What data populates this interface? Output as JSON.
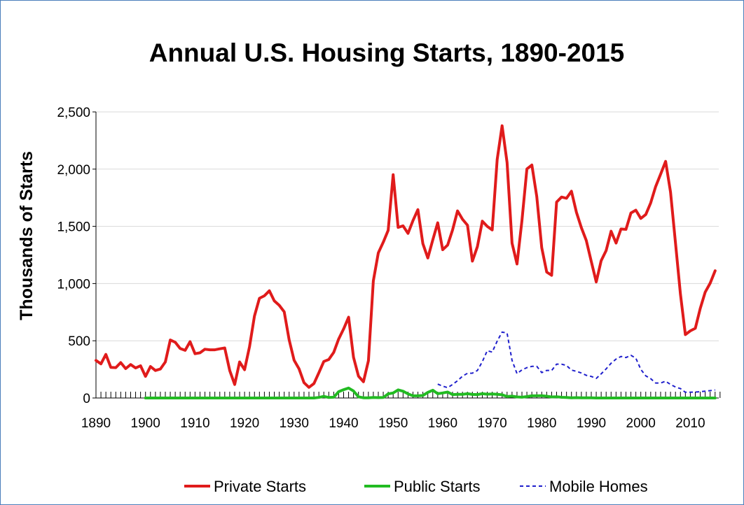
{
  "chart_data": {
    "type": "line",
    "title": "Annual U.S. Housing Starts, 1890-2015",
    "ylabel": "Thousands of Starts",
    "xlabel": "",
    "xlim": [
      1890,
      2016
    ],
    "ylim": [
      0,
      2500
    ],
    "x_ticks": [
      1890,
      1900,
      1910,
      1920,
      1930,
      1940,
      1950,
      1960,
      1970,
      1980,
      1990,
      2000,
      2010
    ],
    "y_ticks": [
      0,
      500,
      1000,
      1500,
      2000,
      2500
    ],
    "y_tick_labels": [
      "0",
      "500",
      "1,000",
      "1,500",
      "2,000",
      "2,500"
    ],
    "grid": "horizontal",
    "legend_position": "bottom",
    "series": [
      {
        "name": "Private Starts",
        "color": "#e01b1b",
        "style": "solid",
        "x": [
          1890,
          1891,
          1892,
          1893,
          1894,
          1895,
          1896,
          1897,
          1898,
          1899,
          1900,
          1901,
          1902,
          1903,
          1904,
          1905,
          1906,
          1907,
          1908,
          1909,
          1910,
          1911,
          1912,
          1913,
          1914,
          1915,
          1916,
          1917,
          1918,
          1919,
          1920,
          1921,
          1922,
          1923,
          1924,
          1925,
          1926,
          1927,
          1928,
          1929,
          1930,
          1931,
          1932,
          1933,
          1934,
          1935,
          1936,
          1937,
          1938,
          1939,
          1940,
          1941,
          1942,
          1943,
          1944,
          1945,
          1946,
          1947,
          1948,
          1949,
          1950,
          1951,
          1952,
          1953,
          1954,
          1955,
          1956,
          1957,
          1958,
          1959,
          1960,
          1961,
          1962,
          1963,
          1964,
          1965,
          1966,
          1967,
          1968,
          1969,
          1970,
          1971,
          1972,
          1973,
          1974,
          1975,
          1976,
          1977,
          1978,
          1979,
          1980,
          1981,
          1982,
          1983,
          1984,
          1985,
          1986,
          1987,
          1988,
          1989,
          1990,
          1991,
          1992,
          1993,
          1994,
          1995,
          1996,
          1997,
          1998,
          1999,
          2000,
          2001,
          2002,
          2003,
          2004,
          2005,
          2006,
          2007,
          2008,
          2009,
          2010,
          2011,
          2012,
          2013,
          2014,
          2015
        ],
        "values": [
          328,
          298,
          381,
          267,
          265,
          309,
          257,
          292,
          262,
          282,
          189,
          275,
          240,
          253,
          315,
          507,
          487,
          432,
          416,
          492,
          387,
          395,
          426,
          421,
          421,
          430,
          437,
          240,
          118,
          315,
          247,
          449,
          716,
          871,
          893,
          937,
          849,
          810,
          753,
          509,
          330,
          254,
          134,
          93,
          126,
          221,
          319,
          336,
          399,
          515,
          603,
          706,
          356,
          191,
          142,
          326,
          1023,
          1268,
          1362,
          1466,
          1952,
          1491,
          1504,
          1438,
          1551,
          1646,
          1349,
          1224,
          1382,
          1531,
          1296,
          1337,
          1469,
          1635,
          1562,
          1510,
          1196,
          1322,
          1545,
          1500,
          1469,
          2085,
          2379,
          2058,
          1353,
          1171,
          1548,
          2001,
          2036,
          1760,
          1313,
          1100,
          1072,
          1712,
          1756,
          1745,
          1807,
          1623,
          1488,
          1376,
          1193,
          1014,
          1200,
          1288,
          1457,
          1354,
          1477,
          1474,
          1617,
          1641,
          1569,
          1603,
          1705,
          1848,
          1956,
          2068,
          1801,
          1355,
          906,
          554,
          587,
          609,
          781,
          925,
          1003,
          1112
        ]
      },
      {
        "name": "Public Starts",
        "color": "#22bb22",
        "style": "solid",
        "x": [
          1900,
          1934,
          1935,
          1936,
          1937,
          1938,
          1939,
          1940,
          1941,
          1942,
          1943,
          1944,
          1945,
          1946,
          1947,
          1948,
          1949,
          1950,
          1951,
          1952,
          1953,
          1954,
          1955,
          1956,
          1957,
          1958,
          1959,
          1960,
          1961,
          1962,
          1963,
          1964,
          1965,
          1966,
          1967,
          1968,
          1969,
          1970,
          1971,
          1972,
          1973,
          1974,
          1975,
          1976,
          1977,
          1978,
          1979,
          1980,
          1981,
          1982,
          1983,
          1984,
          1985,
          1986,
          1987,
          1988,
          1989,
          1990,
          1991,
          1992,
          2000,
          2015
        ],
        "values": [
          0,
          0,
          5,
          14,
          4,
          7,
          55,
          73,
          87,
          61,
          10,
          2,
          2,
          5,
          3,
          4,
          36,
          44,
          71,
          59,
          36,
          19,
          19,
          22,
          49,
          68,
          37,
          44,
          52,
          30,
          32,
          32,
          37,
          31,
          30,
          37,
          33,
          35,
          32,
          28,
          13,
          16,
          9,
          7,
          12,
          19,
          19,
          20,
          15,
          9,
          11,
          6,
          4,
          2,
          3,
          2,
          2,
          2,
          0,
          0,
          0,
          0
        ]
      },
      {
        "name": "Mobile Homes",
        "color": "#1f1fcc",
        "style": "dashed",
        "x": [
          1959,
          1960,
          1961,
          1962,
          1963,
          1964,
          1965,
          1966,
          1967,
          1968,
          1969,
          1970,
          1971,
          1972,
          1973,
          1974,
          1975,
          1976,
          1977,
          1978,
          1979,
          1980,
          1981,
          1982,
          1983,
          1984,
          1985,
          1986,
          1987,
          1988,
          1989,
          1990,
          1991,
          1992,
          1993,
          1994,
          1995,
          1996,
          1997,
          1998,
          1999,
          2000,
          2001,
          2002,
          2003,
          2004,
          2005,
          2006,
          2007,
          2008,
          2009,
          2010,
          2011,
          2012,
          2013,
          2014,
          2015
        ],
        "values": [
          121,
          104,
          90,
          118,
          151,
          191,
          216,
          217,
          240,
          318,
          413,
          401,
          497,
          576,
          567,
          329,
          213,
          246,
          265,
          276,
          277,
          222,
          241,
          240,
          296,
          295,
          284,
          244,
          233,
          218,
          198,
          188,
          171,
          211,
          254,
          304,
          340,
          363,
          353,
          373,
          348,
          250,
          193,
          169,
          131,
          131,
          147,
          118,
          96,
          82,
          50,
          50,
          52,
          55,
          60,
          64,
          70
        ]
      }
    ]
  }
}
